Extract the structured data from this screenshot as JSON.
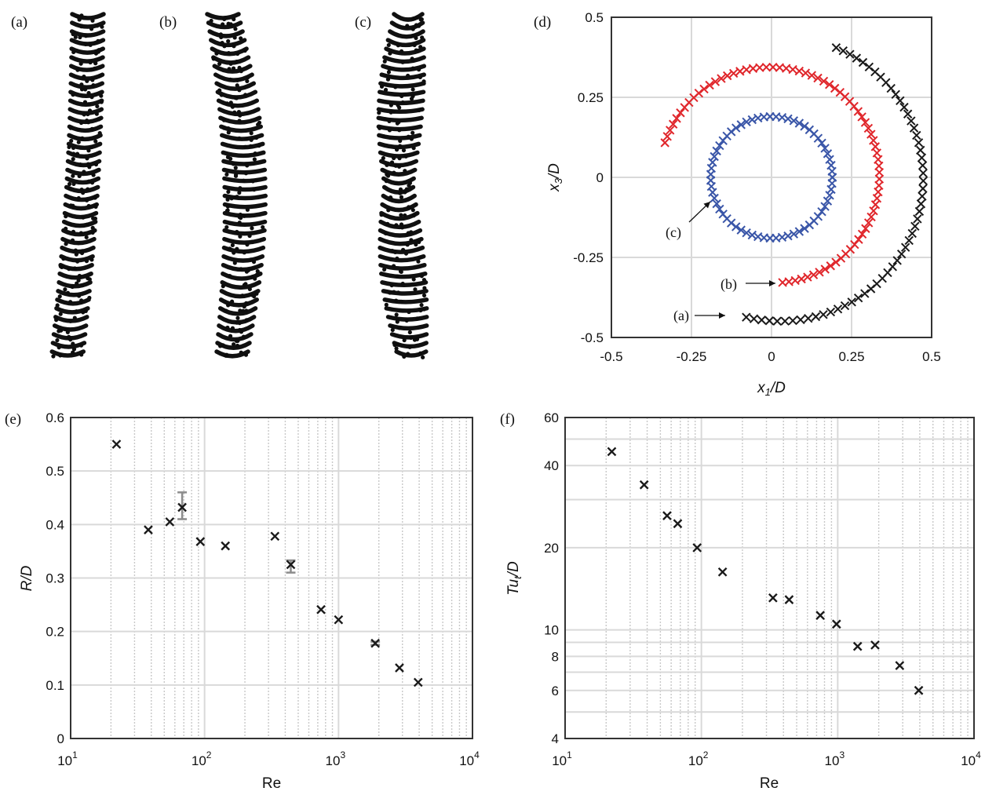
{
  "panel_labels": [
    "(a)",
    "(b)",
    "(c)",
    "(d)",
    "(e)",
    "(f)"
  ],
  "colors": {
    "black": "#1a1a1a",
    "red": "#e0262b",
    "blue": "#3a56a8",
    "grid": "#d9d9d9",
    "errorbar": "#8c8c8c",
    "axis": "#333333"
  },
  "chart_data": [
    {
      "panel": "(d)",
      "type": "scatter",
      "xlabel": "x_1/D",
      "ylabel": "x_3/D",
      "xlim": [
        -0.5,
        0.5
      ],
      "ylim": [
        -0.5,
        0.5
      ],
      "xticks": [
        "-0.5",
        "-0.25",
        "0",
        "0.25",
        "0.5"
      ],
      "yticks": [
        "-0.5",
        "-0.25",
        "0",
        "0.25",
        "0.5"
      ],
      "grid": true,
      "annotations": [
        "(a)",
        "(b)",
        "(c)"
      ],
      "series": [
        {
          "label": "(a)",
          "color": "black",
          "shape": "spiral",
          "center": [
            0.03,
            0.0
          ],
          "r_start": 0.45,
          "r_end": 0.44,
          "theta_start_deg": 256,
          "theta_end_deg": 67,
          "count": 56
        },
        {
          "label": "(b)",
          "color": "red",
          "shape": "spiral",
          "center": [
            0.0,
            0.0
          ],
          "r_start": 0.33,
          "r_end": 0.35,
          "theta_start_deg": 276,
          "theta_end_deg": 162,
          "count": 72
        },
        {
          "label": "(c)",
          "color": "blue",
          "shape": "circle",
          "center": [
            0.0,
            0.0
          ],
          "r": 0.19,
          "count": 64
        }
      ]
    },
    {
      "panel": "(e)",
      "type": "scatter",
      "xlabel": "Re",
      "ylabel": "R/D",
      "xscale": "log",
      "xlim": [
        10,
        10000
      ],
      "ylim": [
        0,
        0.6
      ],
      "xticks": [
        "10",
        "10",
        "10",
        "10"
      ],
      "xtick_exponents": [
        "1",
        "2",
        "3",
        "4"
      ],
      "yticks": [
        "0",
        "0.1",
        "0.2",
        "0.3",
        "0.4",
        "0.5",
        "0.6"
      ],
      "grid": true,
      "x": [
        22,
        38,
        55,
        68,
        93,
        143,
        335,
        440,
        740,
        1000,
        1880,
        2850,
        3930
      ],
      "y": [
        0.55,
        0.39,
        0.405,
        0.432,
        0.368,
        0.36,
        0.378,
        0.325,
        0.241,
        0.222,
        0.178,
        0.132,
        0.105
      ],
      "error_bars": [
        {
          "x": 68,
          "low": 0.41,
          "high": 0.46
        },
        {
          "x": 440,
          "low": 0.31,
          "high": 0.333
        },
        {
          "x": 1880,
          "low": 0.175,
          "high": 0.181
        }
      ]
    },
    {
      "panel": "(f)",
      "type": "scatter",
      "xlabel": "Re",
      "ylabel": "Tu_t/D",
      "xscale": "log",
      "yscale": "log",
      "xlim": [
        10,
        10000
      ],
      "ylim": [
        4,
        60
      ],
      "xticks": [
        "10",
        "10",
        "10",
        "10"
      ],
      "xtick_exponents": [
        "1",
        "2",
        "3",
        "4"
      ],
      "yticks": [
        "4",
        "6",
        "8",
        "10",
        "20",
        "40",
        "60"
      ],
      "grid": true,
      "x": [
        22,
        38,
        56,
        67,
        93,
        143,
        335,
        440,
        745,
        980,
        1400,
        1880,
        2850,
        3930
      ],
      "y": [
        45,
        34,
        26.2,
        24.5,
        20,
        16.3,
        13.1,
        12.9,
        11.3,
        10.5,
        8.7,
        8.8,
        7.4,
        6.0
      ]
    }
  ]
}
